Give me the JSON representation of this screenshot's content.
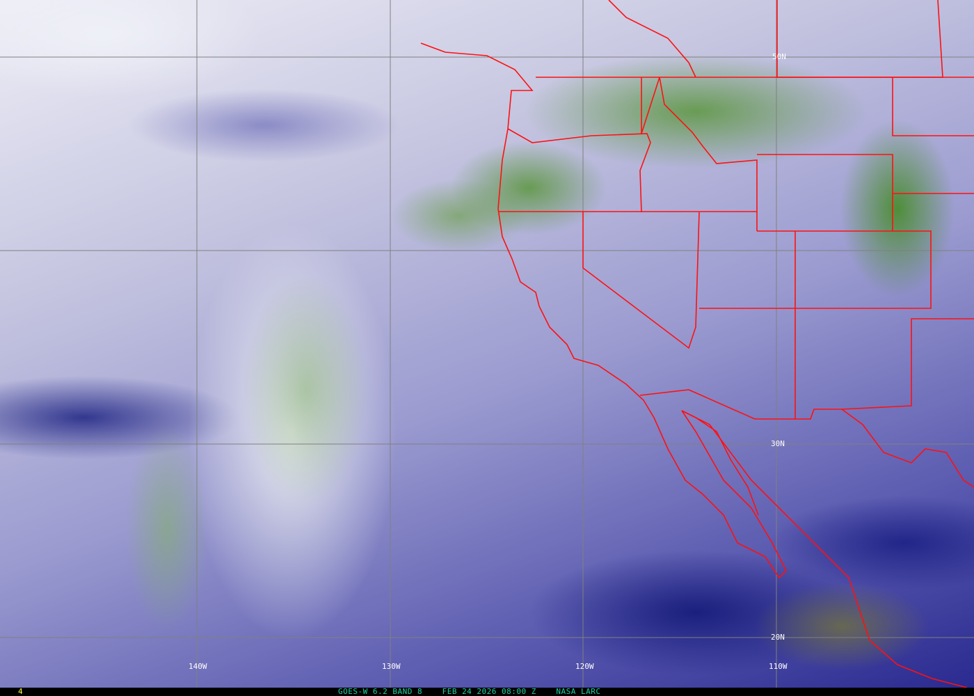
{
  "frame_number": "4",
  "caption": "GOES-W 6.2 BAND 8    FEB 24 2026 08:00 Z    NASA LARC",
  "latitude_labels": [
    "50N",
    "30N",
    "20N"
  ],
  "longitude_labels": [
    "140W",
    "130W",
    "120W",
    "110W"
  ],
  "colors": {
    "borders": "#ff1010",
    "grid": "#808080",
    "labels": "#ffffff",
    "caption": "#20d0a0",
    "frame_number": "#ffff40"
  }
}
